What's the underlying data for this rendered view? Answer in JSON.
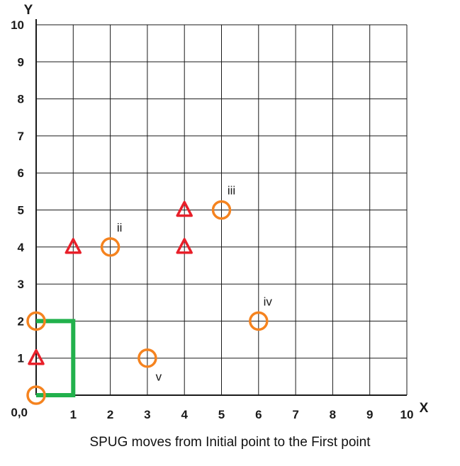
{
  "chart_data": {
    "type": "scatter",
    "xlabel": "X",
    "ylabel": "Y",
    "xlim": [
      0,
      10
    ],
    "ylim": [
      0,
      10
    ],
    "origin_label": "0,0",
    "x_ticks": [
      "1",
      "2",
      "3",
      "4",
      "5",
      "6",
      "7",
      "8",
      "9",
      "10"
    ],
    "y_ticks": [
      "1",
      "2",
      "3",
      "4",
      "5",
      "6",
      "7",
      "8",
      "9",
      "10"
    ],
    "grid": true,
    "circles": [
      {
        "x": 0,
        "y": 0,
        "label": ""
      },
      {
        "x": 0,
        "y": 2,
        "label": ""
      },
      {
        "x": 2,
        "y": 4,
        "label": "ii"
      },
      {
        "x": 5,
        "y": 5,
        "label": "iii"
      },
      {
        "x": 6,
        "y": 2,
        "label": "iv"
      },
      {
        "x": 3,
        "y": 1,
        "label": "v"
      }
    ],
    "triangles": [
      {
        "x": 0,
        "y": 1
      },
      {
        "x": 1,
        "y": 4
      },
      {
        "x": 4,
        "y": 4
      },
      {
        "x": 4,
        "y": 5
      }
    ],
    "path": [
      [
        0,
        0
      ],
      [
        1,
        0
      ],
      [
        1,
        2
      ],
      [
        0,
        2
      ]
    ]
  },
  "colors": {
    "circle": "#f5831f",
    "triangle": "#e8202a",
    "path": "#22b14c",
    "grid": "#1a1a1a"
  },
  "caption": "SPUG moves from Initial point to the First point"
}
